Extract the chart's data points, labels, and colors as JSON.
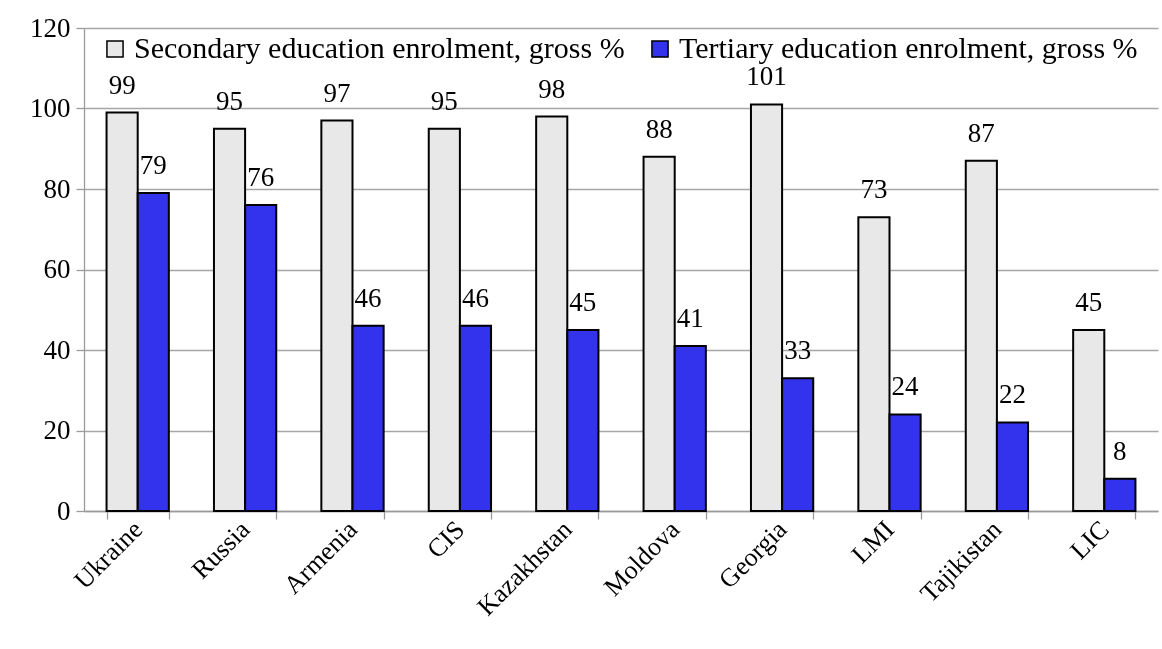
{
  "chart_data": {
    "type": "bar",
    "categories": [
      "Ukraine",
      "Russia",
      "Armenia",
      "CIS",
      "Kazakhstan",
      "Moldova",
      "Georgia",
      "LMI",
      "Tajikistan",
      "LIC"
    ],
    "series": [
      {
        "name": "Secondary education enrolment, gross %",
        "color": "#e8e8e8",
        "values": [
          99,
          95,
          97,
          95,
          98,
          88,
          101,
          73,
          87,
          45
        ]
      },
      {
        "name": "Tertiary education enrolment, gross %",
        "color": "#3333ee",
        "values": [
          79,
          76,
          46,
          46,
          45,
          41,
          33,
          24,
          22,
          8
        ]
      }
    ],
    "ylim": [
      0,
      120
    ],
    "yticks": [
      0,
      20,
      40,
      60,
      80,
      100,
      120
    ],
    "grid": "y",
    "legend": "top",
    "data_labels": true
  }
}
